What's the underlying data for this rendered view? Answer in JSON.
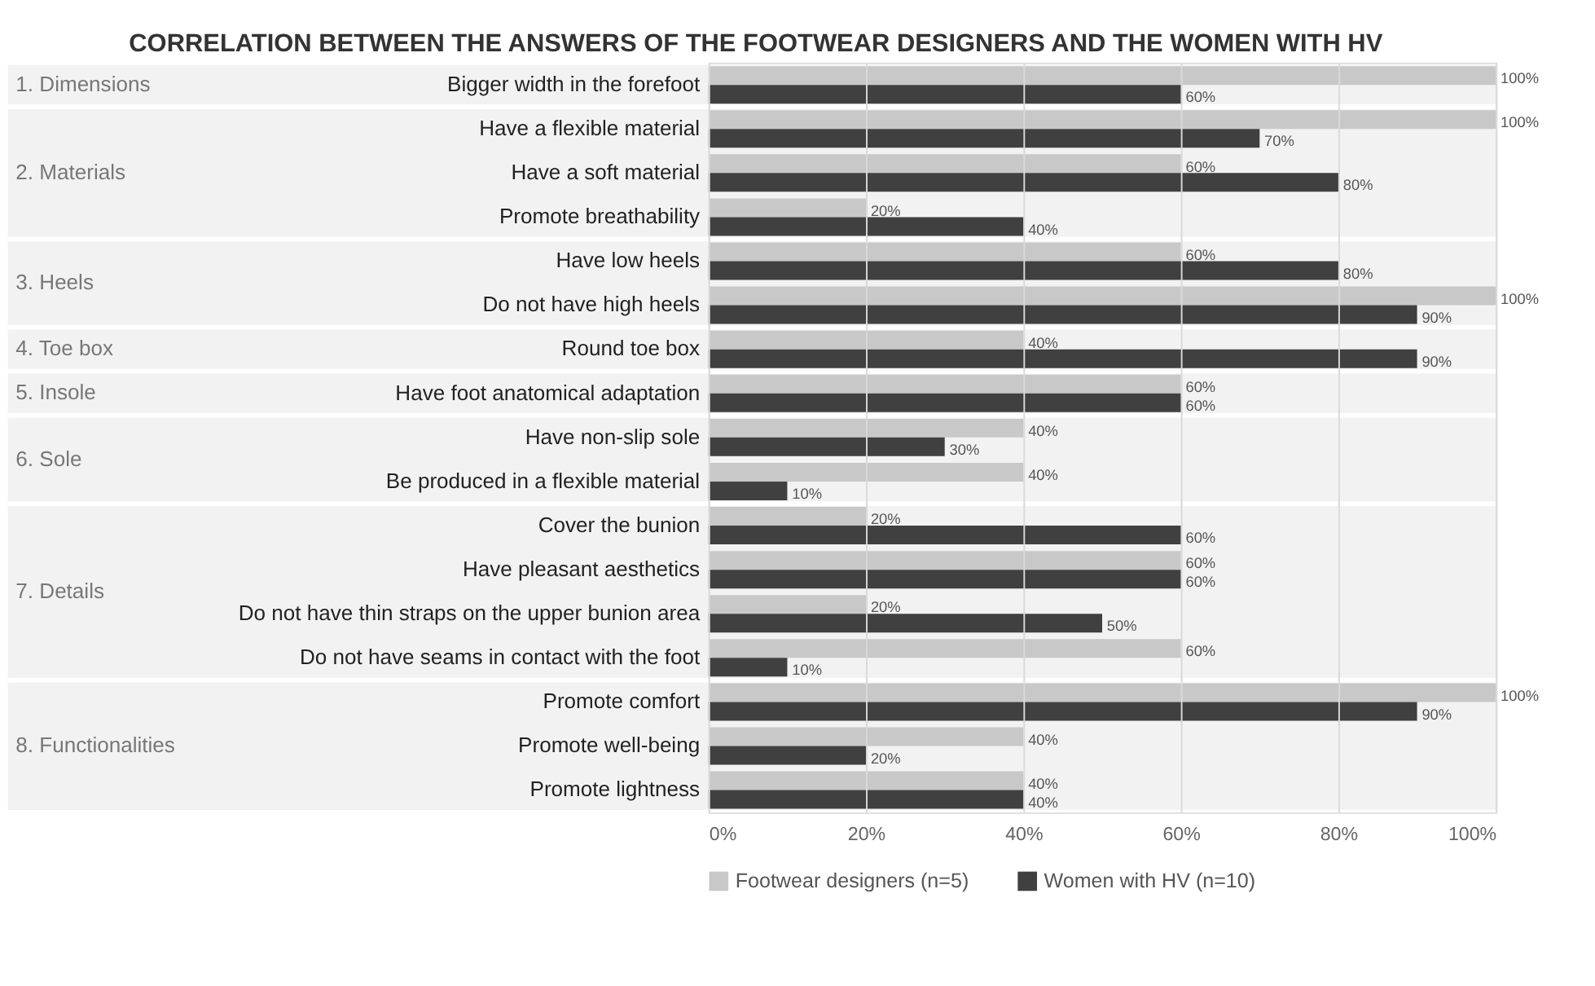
{
  "chart_data": {
    "type": "bar",
    "orientation": "horizontal",
    "title": "CORRELATION BETWEEN THE ANSWERS OF THE FOOTWEAR DESIGNERS AND THE WOMEN WITH HV",
    "categories": [
      "Bigger width in the forefoot",
      "Have a flexible material",
      "Have a soft material",
      "Promote breathability",
      "Have low heels",
      "Do not have high heels",
      "Round toe box",
      "Have foot anatomical adaptation",
      "Have non-slip sole",
      "Be produced in a flexible material",
      "Cover the bunion",
      "Have pleasant aesthetics",
      "Do not have thin straps on the upper bunion area",
      "Do not have seams in contact with the foot",
      "Promote comfort",
      "Promote well-being",
      "Promote lightness"
    ],
    "series": [
      {
        "name": "Footwear designers (n=5)",
        "color": "#c8c8c8",
        "values": [
          100,
          100,
          60,
          20,
          60,
          100,
          40,
          60,
          40,
          40,
          20,
          60,
          20,
          60,
          100,
          40,
          40
        ],
        "value_labels": [
          "100%",
          "100%",
          "60%",
          "20%",
          "60%",
          "100%",
          "40%",
          "60%",
          "40%",
          "40%",
          "20%",
          "60%",
          "20%",
          "60%",
          "100%",
          "40%",
          "40%"
        ]
      },
      {
        "name": "Women with HV (n=10)",
        "color": "#404040",
        "values": [
          60,
          70,
          80,
          40,
          80,
          90,
          90,
          60,
          30,
          10,
          60,
          60,
          50,
          10,
          90,
          20,
          40
        ],
        "value_labels": [
          "60%",
          "70%",
          "80%",
          "40%",
          "80%",
          "90%",
          "90%",
          "60%",
          "30%",
          "10%",
          "60%",
          "60%",
          "50%",
          "10%",
          "90%",
          "20%",
          "40%"
        ]
      }
    ],
    "bands": [
      {
        "axis": "y",
        "from": "Bigger width in the forefoot",
        "to": "Bigger width in the forefoot",
        "label": "1. Dimensions",
        "color": "#f2f2f2"
      },
      {
        "axis": "y",
        "from": "Have a flexible material",
        "to": "Promote breathability",
        "label": "2. Materials",
        "color": "#f2f2f2"
      },
      {
        "axis": "y",
        "from": "Have low heels",
        "to": "Do not have high heels",
        "label": "3. Heels",
        "color": "#f2f2f2"
      },
      {
        "axis": "y",
        "from": "Round toe box",
        "to": "Round toe box",
        "label": "4. Toe box",
        "color": "#f2f2f2"
      },
      {
        "axis": "y",
        "from": "Have foot anatomical adaptation",
        "to": "Have foot anatomical adaptation",
        "label": "5. Insole",
        "color": "#f2f2f2"
      },
      {
        "axis": "y",
        "from": "Have non-slip sole",
        "to": "Be produced in a flexible material",
        "label": "6. Sole",
        "color": "#f2f2f2"
      },
      {
        "axis": "y",
        "from": "Cover the bunion",
        "to": "Do not have seams in contact with the foot",
        "label": "7. Details",
        "color": "#f2f2f2"
      },
      {
        "axis": "y",
        "from": "Promote comfort",
        "to": "Promote lightness",
        "label": "8. Functionalities",
        "color": "#f2f2f2"
      }
    ],
    "xlim": [
      0,
      100
    ],
    "xticks": [
      {
        "value": 0,
        "label": "0%"
      },
      {
        "value": 20,
        "label": "20%"
      },
      {
        "value": 40,
        "label": "40%"
      },
      {
        "value": 60,
        "label": "60%"
      },
      {
        "value": 80,
        "label": "80%"
      },
      {
        "value": 100,
        "label": "100%"
      }
    ],
    "grid": "x",
    "legend": "bottom"
  }
}
